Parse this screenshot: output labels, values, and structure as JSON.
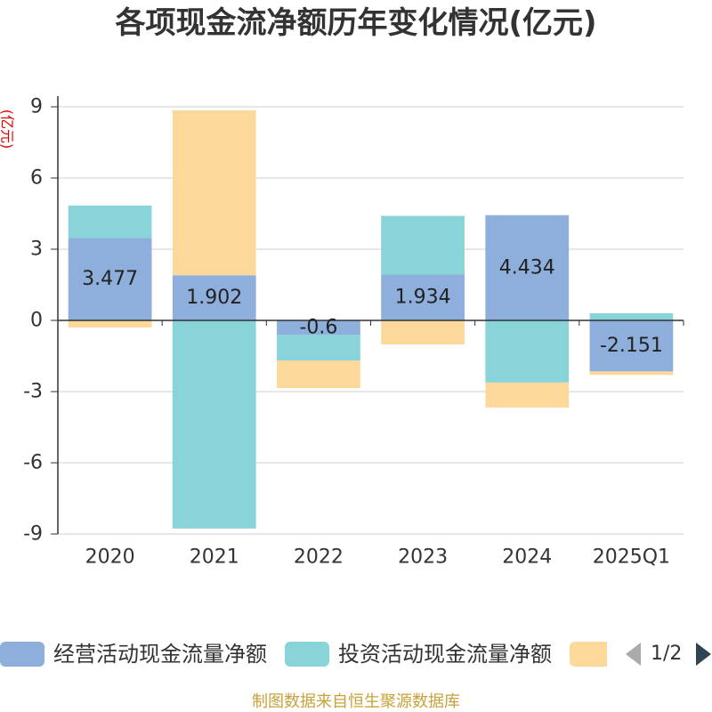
{
  "chart_data": {
    "type": "bar",
    "stacked": true,
    "title": "各项现金流净额历年变化情况(亿元)",
    "ylabel": "(亿元)",
    "categories": [
      "2020",
      "2021",
      "2022",
      "2023",
      "2024",
      "2025Q1"
    ],
    "ylim": [
      -9,
      9
    ],
    "yticks": [
      9,
      6,
      3,
      0,
      -3,
      -6,
      -9
    ],
    "grid": true,
    "legend_position": "bottom",
    "series": [
      {
        "name": "经营活动现金流量净额",
        "color": "#8eaedc",
        "values": [
          3.477,
          1.902,
          -0.6,
          1.934,
          4.434,
          -2.151
        ],
        "show_labels": true
      },
      {
        "name": "投资活动现金流量净额",
        "color": "#88d4d8",
        "values": [
          1.36,
          -8.77,
          -1.09,
          2.47,
          -2.62,
          0.3
        ],
        "show_labels": false
      },
      {
        "name": "",
        "color": "#fdd89b",
        "values": [
          -0.3,
          6.95,
          -1.16,
          -1.01,
          -1.05,
          -0.15
        ],
        "show_labels": false
      }
    ]
  },
  "legend": {
    "page_indicator": "1/2",
    "prev_icon": "triangle-left-icon",
    "next_icon": "triangle-right-icon"
  },
  "footer": "制图数据来自恒生聚源数据库",
  "colors": {
    "ylabel": "#e00000",
    "footer": "#c8a13a",
    "axis": "#333333",
    "gridline": "#cfcfcf"
  }
}
